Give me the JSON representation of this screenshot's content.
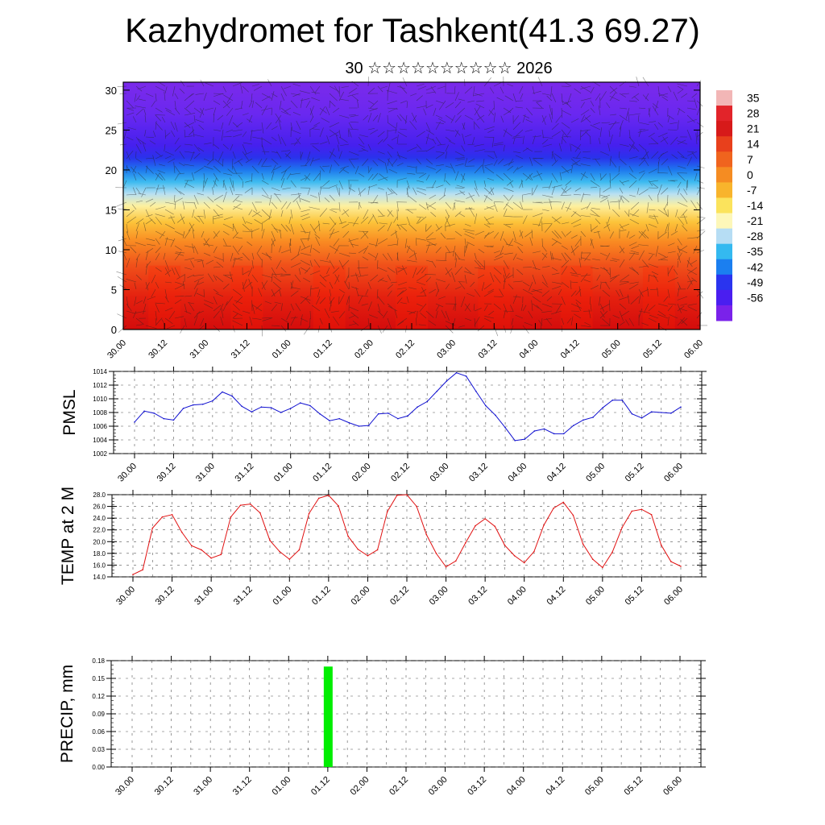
{
  "title": "Kazhydromet for Tashkent(41.3 69.27)",
  "subtitle": "30 ☆☆☆☆☆☆☆☆☆☆ 2026",
  "time_labels": [
    "30.00",
    "30.12",
    "31.00",
    "31.12",
    "01.00",
    "01.12",
    "02.00",
    "02.12",
    "03.00",
    "03.12",
    "04.00",
    "04.12",
    "05.00",
    "05.12",
    "06.00"
  ],
  "chart_data": [
    {
      "name": "cross-section",
      "type": "heatmap",
      "description_x": "forecast time (DD.HH)",
      "ylim": [
        0,
        31
      ],
      "yticks": [
        0,
        5,
        10,
        15,
        20,
        25,
        30
      ],
      "colorbar": {
        "labels": [
          "35",
          "28",
          "21",
          "14",
          "7",
          "0",
          "-7",
          "-14",
          "-21",
          "-28",
          "-35",
          "-42",
          "-49",
          "-56"
        ],
        "colors": [
          "#f2b6b6",
          "#e2242a",
          "#d71a1a",
          "#e8401c",
          "#f0641e",
          "#f58c22",
          "#f8b42c",
          "#fbe35c",
          "#fdf7b9",
          "#b6ddf4",
          "#34b9f0",
          "#1b7ff0",
          "#2a34ef",
          "#4a1ef0",
          "#7a22ea"
        ]
      }
    },
    {
      "name": "pmsl",
      "type": "line",
      "ylabel": "PMSL",
      "ylim": [
        1002,
        1014
      ],
      "yticks": [
        "1002",
        "1004",
        "1006",
        "1008",
        "1010",
        "1012",
        "1014"
      ],
      "values": [
        1006.6,
        1008.2,
        1007.9,
        1007.1,
        1006.9,
        1008.6,
        1009.1,
        1009.2,
        1009.7,
        1011.0,
        1010.4,
        1008.9,
        1008.1,
        1008.8,
        1008.7,
        1008.0,
        1008.6,
        1009.4,
        1009.0,
        1007.8,
        1006.8,
        1007.1,
        1006.5,
        1006.0,
        1006.1,
        1007.8,
        1007.9,
        1007.1,
        1007.5,
        1008.8,
        1009.6,
        1011.1,
        1012.6,
        1013.8,
        1013.3,
        1011.1,
        1009.0,
        1007.6,
        1005.8,
        1003.9,
        1004.1,
        1005.3,
        1005.6,
        1004.9,
        1004.9,
        1006.1,
        1006.9,
        1007.3,
        1008.7,
        1009.8,
        1009.8,
        1007.8,
        1007.2,
        1008.1,
        1008.0,
        1007.9,
        1008.8
      ],
      "color": "#1010d0"
    },
    {
      "name": "temp",
      "type": "line",
      "ylabel": "TEMP at 2 M",
      "ylim": [
        14,
        28
      ],
      "yticks": [
        "14.0",
        "16.0",
        "18.0",
        "20.0",
        "22.0",
        "24.0",
        "26.0",
        "28.0"
      ],
      "values": [
        14.4,
        15.2,
        22.3,
        24.2,
        24.6,
        21.6,
        19.3,
        18.6,
        17.2,
        17.8,
        24.2,
        26.2,
        26.4,
        24.9,
        20.2,
        18.3,
        17.0,
        18.6,
        24.8,
        27.4,
        27.9,
        26.1,
        20.9,
        18.7,
        17.6,
        18.6,
        25.1,
        27.9,
        28.0,
        26.0,
        21.2,
        18.0,
        15.7,
        16.7,
        19.8,
        22.7,
        23.9,
        22.6,
        19.4,
        17.6,
        16.4,
        18.3,
        22.8,
        25.7,
        26.7,
        24.5,
        19.6,
        17.0,
        15.6,
        18.2,
        22.4,
        25.2,
        25.5,
        24.6,
        19.4,
        16.6,
        15.8
      ],
      "color": "#e01010"
    },
    {
      "name": "precip",
      "type": "bar",
      "ylabel": "PRECIP, mm",
      "ylim": [
        0,
        0.18
      ],
      "yticks": [
        "0.00",
        "0.03",
        "0.06",
        "0.09",
        "0.12",
        "0.15",
        "0.18"
      ],
      "bars": [
        {
          "time_index": 20,
          "value": 0.17
        }
      ],
      "color": "#00ee00"
    }
  ]
}
